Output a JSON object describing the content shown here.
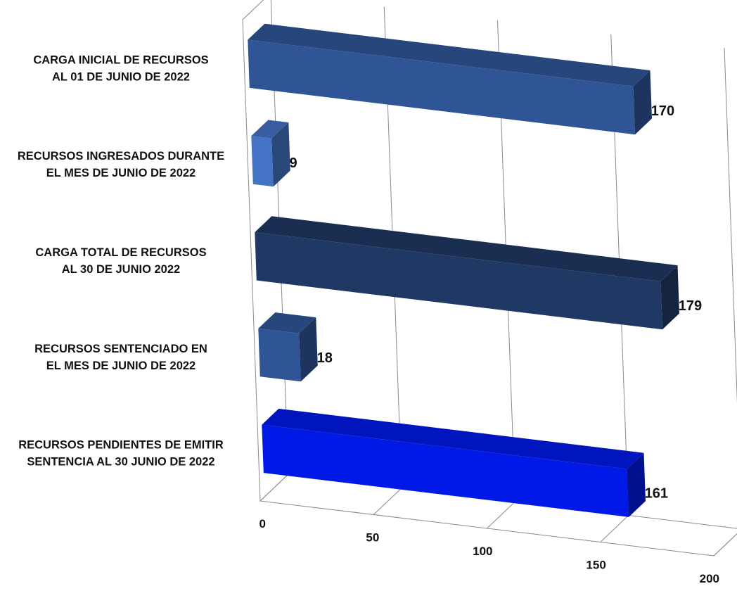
{
  "chart_data": {
    "type": "bar",
    "orientation": "horizontal",
    "style": "3d",
    "categories": [
      [
        "CARGA INICIAL DE RECURSOS",
        "AL 01 DE JUNIO DE 2022"
      ],
      [
        "RECURSOS INGRESADOS DURANTE",
        "EL MES DE JUNIO DE 2022"
      ],
      [
        "CARGA TOTAL DE RECURSOS",
        "AL 30 DE JUNIO 2022"
      ],
      [
        "RECURSOS SENTENCIADO EN",
        "EL MES DE JUNIO DE 2022"
      ],
      [
        "RECURSOS PENDIENTES DE EMITIR",
        "SENTENCIA AL 30 JUNIO DE 2022"
      ]
    ],
    "values": [
      170,
      9,
      179,
      18,
      161
    ],
    "data_labels": [
      "170",
      "9",
      "179",
      "18",
      "161"
    ],
    "bar_colors": [
      "#2f5597",
      "#4472c4",
      "#203864",
      "#2f5597",
      "#0019e6"
    ],
    "xlim": [
      0,
      200
    ],
    "x_ticks": [
      0,
      50,
      100,
      150,
      200
    ],
    "x_tick_labels": [
      "0",
      "50",
      "100",
      "150",
      "200"
    ],
    "grid": true,
    "legend": "none",
    "title": ""
  }
}
